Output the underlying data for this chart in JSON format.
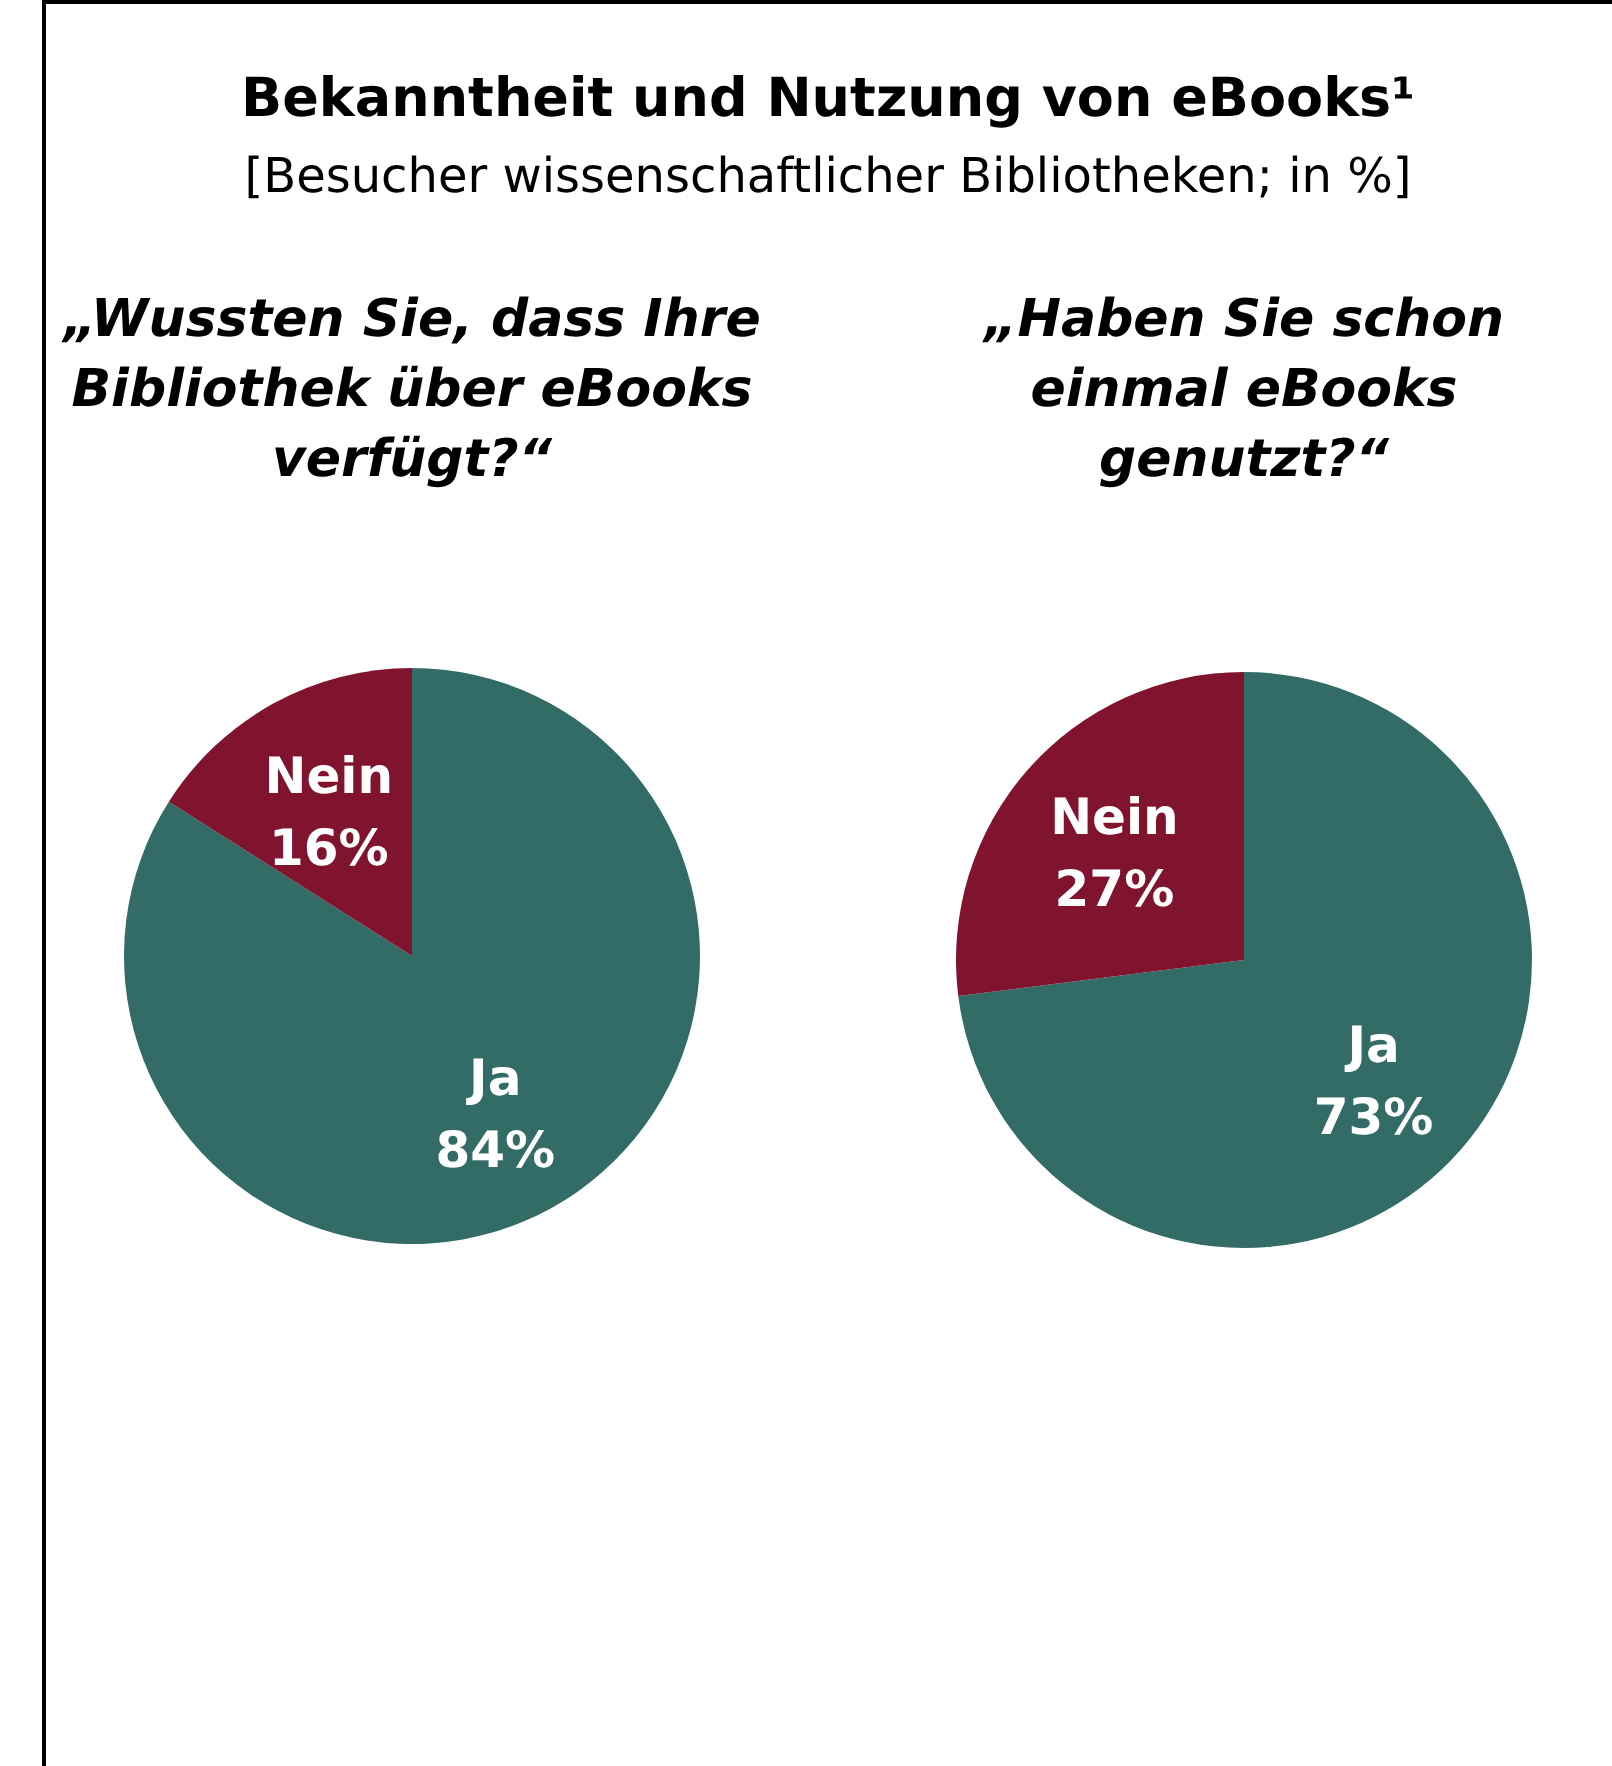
{
  "chart_data": [
    {
      "type": "other",
      "title": "Bekanntheit und Nutzung von eBooks¹",
      "subtitle": "[Besucher wissenschaftlicher Bibliotheken; in %]"
    },
    {
      "type": "pie",
      "title": "„Wussten Sie, dass Ihre Bibliothek über eBooks verfügt?“",
      "categories": [
        "Ja",
        "Nein"
      ],
      "values": [
        84,
        16
      ],
      "colors": [
        "#336b66",
        "#80142e"
      ],
      "value_labels": [
        "84%",
        "16%"
      ]
    },
    {
      "type": "pie",
      "title": "„Haben Sie schon einmal eBooks genutzt?“",
      "categories": [
        "Ja",
        "Nein"
      ],
      "values": [
        73,
        27
      ],
      "colors": [
        "#336b66",
        "#80142e"
      ],
      "value_labels": [
        "73%",
        "27%"
      ]
    }
  ]
}
